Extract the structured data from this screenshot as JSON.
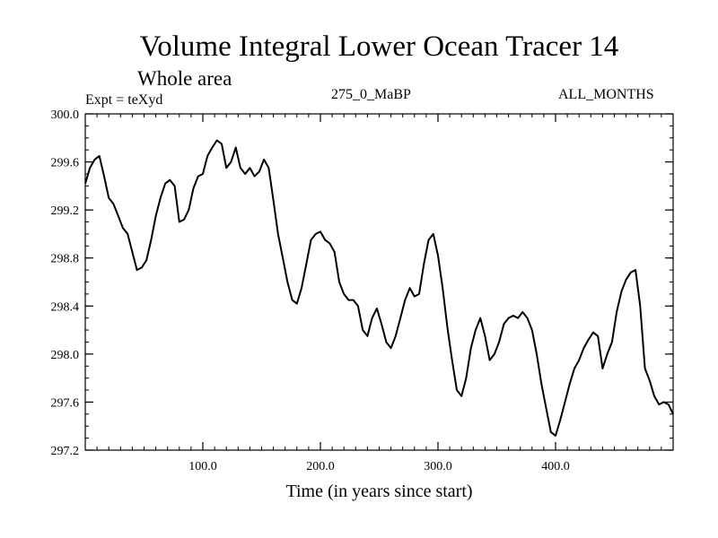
{
  "header": {
    "title": "Volume Integral Lower Ocean Tracer 14",
    "subtitle": "Whole area",
    "expt_label": "Expt = teXyd",
    "center_label": "275_0_MaBP",
    "right_label": "ALL_MONTHS"
  },
  "chart_data": {
    "type": "line",
    "title": "Volume Integral Lower Ocean Tracer 14",
    "subtitle": "Whole area",
    "xlabel": "Time (in years since start)",
    "ylabel": "",
    "xlim": [
      0,
      500
    ],
    "ylim": [
      297.2,
      300.0
    ],
    "x_ticks": [
      100,
      200,
      300,
      400
    ],
    "x_tick_labels": [
      "100.0",
      "200.0",
      "300.0",
      "400.0"
    ],
    "y_ticks": [
      297.2,
      297.6,
      298.0,
      298.4,
      298.8,
      299.2,
      299.6,
      300.0
    ],
    "y_tick_labels": [
      "297.2",
      "297.6",
      "298.0",
      "298.4",
      "298.8",
      "299.2",
      "299.6",
      "300.0"
    ],
    "grid": false,
    "line_color": "#000000",
    "series": [
      {
        "x": [
          0,
          4,
          8,
          12,
          16,
          20,
          24,
          28,
          32,
          36,
          40,
          44,
          48,
          52,
          56,
          60,
          64,
          68,
          72,
          76,
          80,
          84,
          88,
          92,
          96,
          100,
          104,
          108,
          112,
          116,
          120,
          124,
          128,
          132,
          136,
          140,
          144,
          148,
          152,
          156,
          160,
          164,
          168,
          172,
          176,
          180,
          184,
          188,
          192,
          196,
          200,
          204,
          208,
          212,
          216,
          220,
          224,
          228,
          232,
          236,
          240,
          244,
          248,
          252,
          256,
          260,
          264,
          268,
          272,
          276,
          280,
          284,
          288,
          292,
          296,
          300,
          304,
          308,
          312,
          316,
          320,
          324,
          328,
          332,
          336,
          340,
          344,
          348,
          352,
          356,
          360,
          364,
          368,
          372,
          376,
          380,
          384,
          388,
          392,
          396,
          400,
          404,
          408,
          412,
          416,
          420,
          424,
          428,
          432,
          436,
          440,
          444,
          448,
          452,
          456,
          460,
          464,
          468,
          472,
          476,
          480,
          484,
          488,
          492,
          496,
          500
        ],
        "values": [
          299.42,
          299.55,
          299.62,
          299.65,
          299.48,
          299.3,
          299.25,
          299.15,
          299.05,
          299.0,
          298.85,
          298.7,
          298.72,
          298.78,
          298.95,
          299.15,
          299.3,
          299.42,
          299.45,
          299.4,
          299.1,
          299.12,
          299.2,
          299.38,
          299.48,
          299.5,
          299.65,
          299.72,
          299.78,
          299.75,
          299.55,
          299.6,
          299.72,
          299.55,
          299.5,
          299.55,
          299.48,
          299.52,
          299.62,
          299.55,
          299.28,
          299.0,
          298.8,
          298.6,
          298.45,
          298.42,
          298.55,
          298.75,
          298.95,
          299.0,
          299.02,
          298.95,
          298.92,
          298.85,
          298.6,
          298.5,
          298.45,
          298.45,
          298.4,
          298.2,
          298.15,
          298.3,
          298.38,
          298.25,
          298.1,
          298.05,
          298.15,
          298.3,
          298.45,
          298.55,
          298.48,
          298.5,
          298.75,
          298.95,
          299.0,
          298.82,
          298.55,
          298.22,
          297.95,
          297.7,
          297.65,
          297.8,
          298.05,
          298.2,
          298.3,
          298.15,
          297.95,
          298.0,
          298.1,
          298.25,
          298.3,
          298.32,
          298.3,
          298.35,
          298.3,
          298.2,
          298.0,
          297.75,
          297.55,
          297.35,
          297.32,
          297.45,
          297.6,
          297.75,
          297.88,
          297.95,
          298.05,
          298.12,
          298.18,
          298.15,
          297.88,
          298.0,
          298.1,
          298.35,
          298.52,
          298.62,
          298.68,
          298.7,
          298.4,
          297.88,
          297.78,
          297.65,
          297.58,
          297.6,
          297.58,
          297.5
        ]
      }
    ]
  }
}
